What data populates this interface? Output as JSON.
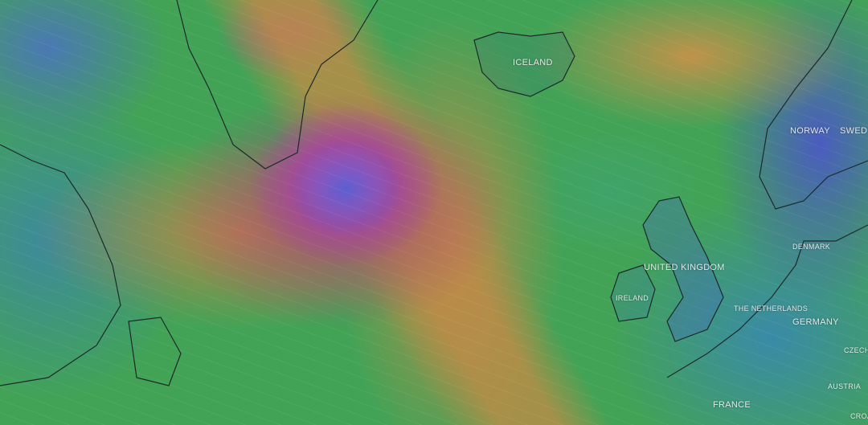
{
  "map": {
    "layer": "wind",
    "colors": {
      "calm": "#4a5cc0",
      "light": "#42a356",
      "moderate": "#c08a48",
      "strong": "#a44e74",
      "extreme": "#c050b8"
    },
    "labels": {
      "iceland": "ICELAND",
      "norway": "NORWAY",
      "sweden": "SWED",
      "united_kingdom": "UNITED KINGDOM",
      "ireland": "IRELAND",
      "denmark": "DENMARK",
      "netherlands": "THE NETHERLANDS",
      "germany": "GERMANY",
      "czech": "CZECH",
      "austria": "AUSTRIA",
      "france": "FRANCE",
      "croatia": "CROA"
    }
  }
}
